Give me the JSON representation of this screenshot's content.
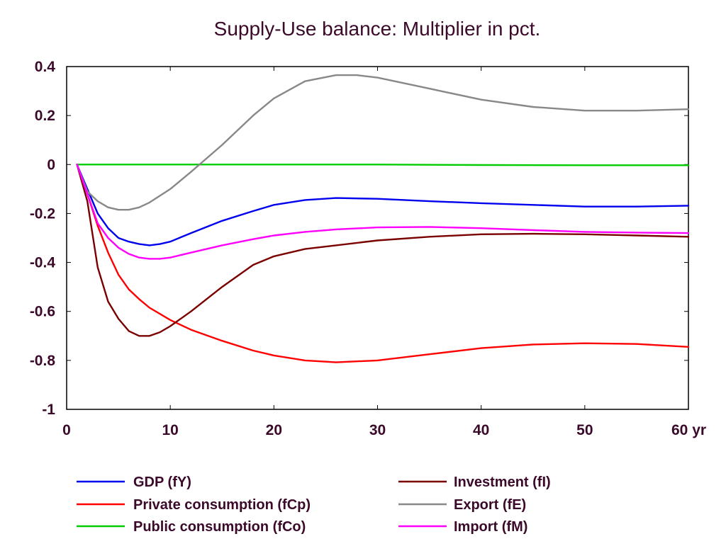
{
  "chart_data": {
    "type": "line",
    "title": "Supply-Use balance: Multiplier in pct.",
    "xlabel": "",
    "ylabel": "",
    "x_unit_label": "yr",
    "xlim": [
      0,
      60
    ],
    "ylim": [
      -1,
      0.4
    ],
    "x_ticks": [
      0,
      10,
      20,
      30,
      40,
      50,
      60
    ],
    "x_tick_labels": [
      "0",
      "10",
      "20",
      "30",
      "40",
      "50",
      "60 yr"
    ],
    "y_ticks": [
      0.4,
      0.2,
      0,
      -0.2,
      -0.4,
      -0.6,
      -0.8,
      -1
    ],
    "y_tick_labels": [
      "0.4",
      "0.2",
      "0",
      "-0.2",
      "-0.4",
      "-0.6",
      "-0.8",
      "-1"
    ],
    "grid": false,
    "legend_position": "bottom",
    "series": [
      {
        "name": "GDP (fY)",
        "color": "#0000ee",
        "points": [
          [
            1,
            0
          ],
          [
            2,
            -0.1
          ],
          [
            3,
            -0.2
          ],
          [
            4,
            -0.26
          ],
          [
            5,
            -0.3
          ],
          [
            6,
            -0.315
          ],
          [
            7,
            -0.325
          ],
          [
            8,
            -0.33
          ],
          [
            9,
            -0.325
          ],
          [
            10,
            -0.315
          ],
          [
            12,
            -0.28
          ],
          [
            15,
            -0.23
          ],
          [
            18,
            -0.19
          ],
          [
            20,
            -0.165
          ],
          [
            23,
            -0.145
          ],
          [
            26,
            -0.137
          ],
          [
            30,
            -0.14
          ],
          [
            35,
            -0.15
          ],
          [
            40,
            -0.158
          ],
          [
            45,
            -0.165
          ],
          [
            50,
            -0.172
          ],
          [
            55,
            -0.172
          ],
          [
            60,
            -0.168
          ]
        ]
      },
      {
        "name": "Private consumption (fCp)",
        "color": "#ff0000",
        "points": [
          [
            1,
            0
          ],
          [
            2,
            -0.12
          ],
          [
            3,
            -0.25
          ],
          [
            4,
            -0.36
          ],
          [
            5,
            -0.45
          ],
          [
            6,
            -0.51
          ],
          [
            7,
            -0.55
          ],
          [
            8,
            -0.585
          ],
          [
            10,
            -0.635
          ],
          [
            12,
            -0.675
          ],
          [
            15,
            -0.72
          ],
          [
            18,
            -0.76
          ],
          [
            20,
            -0.78
          ],
          [
            23,
            -0.8
          ],
          [
            26,
            -0.808
          ],
          [
            30,
            -0.8
          ],
          [
            35,
            -0.775
          ],
          [
            40,
            -0.75
          ],
          [
            45,
            -0.735
          ],
          [
            50,
            -0.73
          ],
          [
            55,
            -0.733
          ],
          [
            60,
            -0.745
          ]
        ]
      },
      {
        "name": "Public consumption (fCo)",
        "color": "#00cc00",
        "points": [
          [
            1,
            0
          ],
          [
            10,
            0
          ],
          [
            20,
            0
          ],
          [
            30,
            0
          ],
          [
            40,
            -0.002
          ],
          [
            50,
            -0.003
          ],
          [
            60,
            -0.003
          ]
        ]
      },
      {
        "name": "Investment (fI)",
        "color": "#7a0000",
        "points": [
          [
            1,
            0
          ],
          [
            2,
            -0.15
          ],
          [
            3,
            -0.42
          ],
          [
            4,
            -0.56
          ],
          [
            5,
            -0.63
          ],
          [
            6,
            -0.68
          ],
          [
            7,
            -0.7
          ],
          [
            8,
            -0.7
          ],
          [
            9,
            -0.685
          ],
          [
            10,
            -0.66
          ],
          [
            12,
            -0.6
          ],
          [
            15,
            -0.5
          ],
          [
            18,
            -0.41
          ],
          [
            20,
            -0.375
          ],
          [
            23,
            -0.345
          ],
          [
            26,
            -0.33
          ],
          [
            30,
            -0.31
          ],
          [
            35,
            -0.295
          ],
          [
            40,
            -0.285
          ],
          [
            45,
            -0.283
          ],
          [
            50,
            -0.285
          ],
          [
            55,
            -0.29
          ],
          [
            60,
            -0.295
          ]
        ]
      },
      {
        "name": "Export (fE)",
        "color": "#888888",
        "points": [
          [
            1,
            0
          ],
          [
            2,
            -0.11
          ],
          [
            3,
            -0.15
          ],
          [
            4,
            -0.175
          ],
          [
            5,
            -0.185
          ],
          [
            6,
            -0.185
          ],
          [
            7,
            -0.175
          ],
          [
            8,
            -0.155
          ],
          [
            10,
            -0.1
          ],
          [
            12,
            -0.03
          ],
          [
            15,
            0.08
          ],
          [
            18,
            0.2
          ],
          [
            20,
            0.27
          ],
          [
            23,
            0.34
          ],
          [
            26,
            0.365
          ],
          [
            28,
            0.365
          ],
          [
            30,
            0.355
          ],
          [
            35,
            0.31
          ],
          [
            40,
            0.265
          ],
          [
            45,
            0.235
          ],
          [
            50,
            0.22
          ],
          [
            55,
            0.22
          ],
          [
            60,
            0.226
          ]
        ]
      },
      {
        "name": "Import (fM)",
        "color": "#ff00ff",
        "points": [
          [
            1,
            0
          ],
          [
            2,
            -0.12
          ],
          [
            3,
            -0.24
          ],
          [
            4,
            -0.3
          ],
          [
            5,
            -0.34
          ],
          [
            6,
            -0.365
          ],
          [
            7,
            -0.38
          ],
          [
            8,
            -0.385
          ],
          [
            9,
            -0.385
          ],
          [
            10,
            -0.38
          ],
          [
            12,
            -0.36
          ],
          [
            15,
            -0.33
          ],
          [
            18,
            -0.305
          ],
          [
            20,
            -0.29
          ],
          [
            23,
            -0.275
          ],
          [
            26,
            -0.265
          ],
          [
            30,
            -0.257
          ],
          [
            35,
            -0.255
          ],
          [
            40,
            -0.26
          ],
          [
            45,
            -0.268
          ],
          [
            50,
            -0.275
          ],
          [
            55,
            -0.278
          ],
          [
            60,
            -0.28
          ]
        ]
      }
    ],
    "legend_columns": [
      [
        "GDP (fY)",
        "Private consumption (fCp)",
        "Public consumption (fCo)"
      ],
      [
        "Investment (fI)",
        "Export (fE)",
        "Import (fM)"
      ]
    ]
  }
}
